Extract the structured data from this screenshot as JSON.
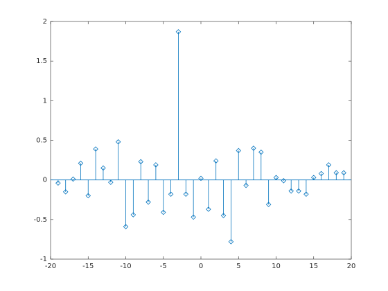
{
  "chart_data": {
    "type": "stem",
    "marker": "diamond",
    "color": "#0072bd",
    "x": [
      -19,
      -18,
      -17,
      -16,
      -15,
      -14,
      -13,
      -12,
      -11,
      -10,
      -9,
      -8,
      -7,
      -6,
      -5,
      -4,
      -3,
      -2,
      -1,
      0,
      1,
      2,
      3,
      4,
      5,
      6,
      7,
      8,
      9,
      10,
      11,
      12,
      13,
      14,
      15,
      16,
      17,
      18,
      19
    ],
    "values": [
      -0.04,
      -0.15,
      0.01,
      0.21,
      -0.2,
      0.39,
      0.15,
      -0.03,
      0.48,
      -0.59,
      -0.44,
      0.23,
      -0.28,
      0.19,
      -0.41,
      -0.18,
      1.87,
      -0.18,
      -0.47,
      0.02,
      -0.37,
      0.24,
      -0.45,
      -0.78,
      0.37,
      -0.07,
      0.4,
      0.35,
      -0.31,
      0.03,
      -0.01,
      -0.14,
      -0.14,
      -0.18,
      0.03,
      0.08,
      0.19,
      0.09,
      0.09
    ],
    "xlim": [
      -20,
      20
    ],
    "ylim": [
      -1,
      2
    ],
    "xticks": [
      -20,
      -15,
      -10,
      -5,
      0,
      5,
      10,
      15,
      20
    ],
    "yticks": [
      -1,
      -0.5,
      0,
      0.5,
      1,
      1.5,
      2
    ]
  }
}
